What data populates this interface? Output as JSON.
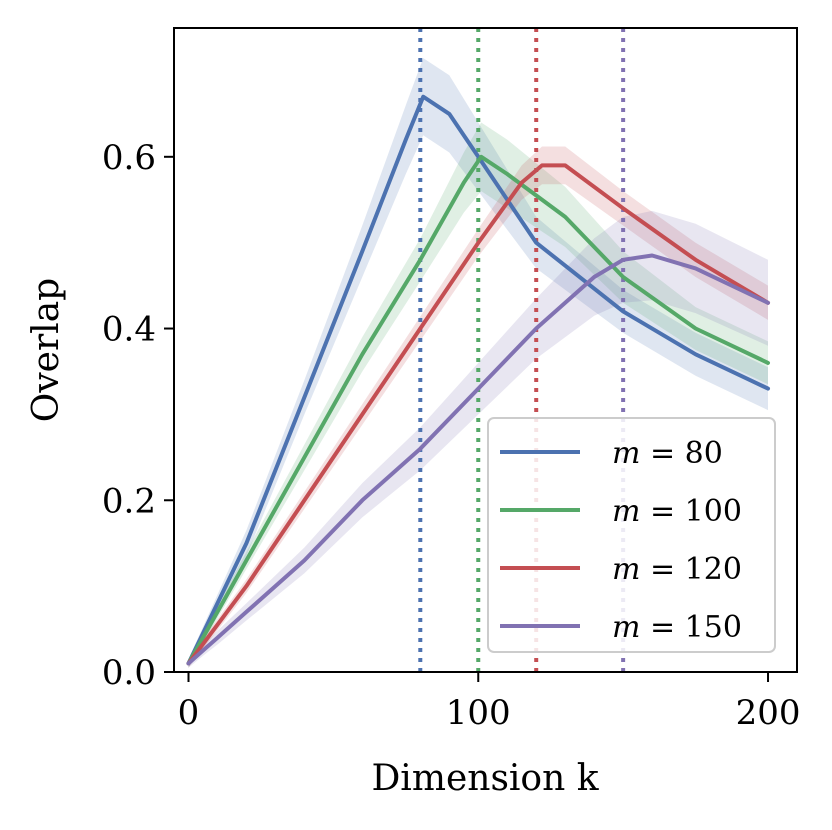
{
  "chart_data": {
    "type": "line",
    "title": "",
    "xlabel": "Dimension k",
    "ylabel": "Overlap",
    "xlim": [
      -5,
      210
    ],
    "ylim": [
      0,
      0.75
    ],
    "xticks": [
      0,
      100,
      200
    ],
    "xtick_labels": [
      "0",
      "100",
      "200"
    ],
    "yticks": [
      0.0,
      0.2,
      0.4,
      0.6
    ],
    "ytick_labels": [
      "0.0",
      "0.2",
      "0.4",
      "0.6"
    ],
    "grid": false,
    "legend_position": "lower-right",
    "series": [
      {
        "name": "m = 80",
        "label_var": "m",
        "label_value": "80",
        "color": "#4C72B0",
        "marker_k": 80,
        "x": [
          0,
          20,
          40,
          60,
          75,
          81,
          90,
          100,
          120,
          150,
          175,
          200
        ],
        "values": [
          0.01,
          0.15,
          0.32,
          0.49,
          0.62,
          0.67,
          0.65,
          0.6,
          0.5,
          0.42,
          0.37,
          0.33
        ],
        "band": [
          0.005,
          0.015,
          0.02,
          0.03,
          0.04,
          0.045,
          0.045,
          0.04,
          0.03,
          0.025,
          0.025,
          0.025
        ]
      },
      {
        "name": "m = 100",
        "label_var": "m",
        "label_value": "100",
        "color": "#55A868",
        "marker_k": 100,
        "x": [
          0,
          20,
          40,
          60,
          80,
          95,
          101,
          110,
          130,
          150,
          175,
          200
        ],
        "values": [
          0.01,
          0.13,
          0.25,
          0.37,
          0.48,
          0.57,
          0.6,
          0.58,
          0.53,
          0.46,
          0.4,
          0.36
        ],
        "band": [
          0.005,
          0.01,
          0.015,
          0.02,
          0.025,
          0.035,
          0.04,
          0.04,
          0.035,
          0.03,
          0.025,
          0.025
        ]
      },
      {
        "name": "m = 120",
        "label_var": "m",
        "label_value": "120",
        "color": "#C44E52",
        "marker_k": 120,
        "x": [
          0,
          20,
          40,
          60,
          80,
          100,
          115,
          122,
          130,
          150,
          175,
          200
        ],
        "values": [
          0.01,
          0.1,
          0.2,
          0.3,
          0.4,
          0.5,
          0.57,
          0.59,
          0.59,
          0.54,
          0.48,
          0.43
        ],
        "band": [
          0.005,
          0.008,
          0.01,
          0.012,
          0.014,
          0.016,
          0.02,
          0.022,
          0.022,
          0.02,
          0.02,
          0.02
        ]
      },
      {
        "name": "m = 150",
        "label_var": "m",
        "label_value": "150",
        "color": "#8172B2",
        "marker_k": 150,
        "x": [
          0,
          5,
          10,
          20,
          40,
          60,
          80,
          100,
          120,
          140,
          150,
          160,
          175,
          200
        ],
        "values": [
          0.01,
          0.025,
          0.04,
          0.07,
          0.13,
          0.2,
          0.26,
          0.33,
          0.4,
          0.46,
          0.48,
          0.485,
          0.47,
          0.43
        ],
        "band": [
          0.005,
          0.006,
          0.008,
          0.01,
          0.015,
          0.02,
          0.025,
          0.03,
          0.035,
          0.045,
          0.05,
          0.052,
          0.052,
          0.05
        ]
      }
    ]
  }
}
